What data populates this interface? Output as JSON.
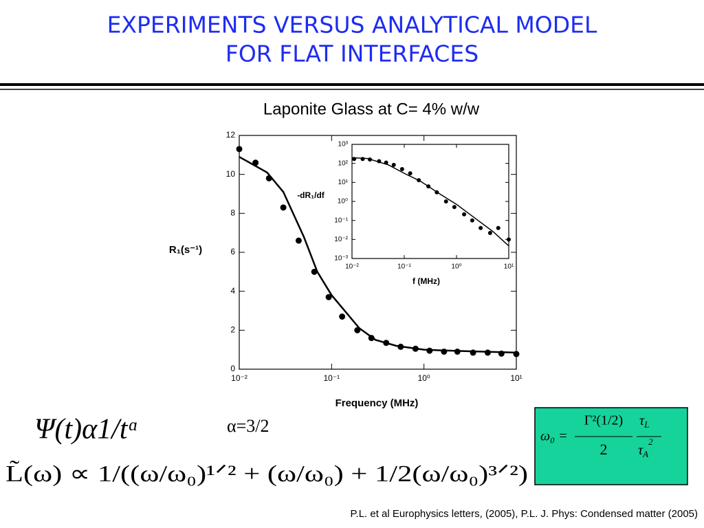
{
  "slide": {
    "title": [
      "EXPERIMENTS VERSUS ANALYTICAL MODEL",
      "FOR FLAT INTERFACES"
    ],
    "equation_1": "Ψ(t)α1/tᵅ",
    "alpha": "α=3/2",
    "equation_2": "L̃(ω) ∝ 1/((ω/ω₀)¹ᐟ² + (ω/ω₀) + 1/2(ω/ω₀)³ᐟ²)",
    "omega_box": {
      "lhs": "ω₀ =",
      "frac1": {
        "num": "Γ²(1/2)",
        "den": "2"
      },
      "frac2": {
        "num": {
          "symbol": "τ",
          "sub": "L"
        },
        "den": {
          "symbol": "τ",
          "sub": "A",
          "sup": "2"
        }
      }
    },
    "footer": "P.L. et al Europhysics letters, (2005), P.L. J. Phys: Condensed matter (2005)"
  },
  "chart_data": [
    {
      "type": "scatter",
      "title": "Laponite Glass at C= 4% w/w",
      "x_label": "Frequency (MHz)",
      "y_label": "R₁(s⁻¹)",
      "xlog": true,
      "xlim": [
        0.01,
        10
      ],
      "xticks": [
        {
          "value": 0.01,
          "label": "10⁻²"
        },
        {
          "value": 0.1,
          "label": "10⁻¹"
        },
        {
          "value": 1,
          "label": "10⁰"
        },
        {
          "value": 10,
          "label": "10¹"
        }
      ],
      "ylim": [
        0,
        12
      ],
      "yticks": [
        0,
        2,
        4,
        6,
        8,
        10,
        12
      ],
      "series": [
        {
          "mode": "markers",
          "color": "#000000",
          "x": [
            0.01,
            0.015,
            0.021,
            0.03,
            0.044,
            0.065,
            0.093,
            0.13,
            0.19,
            0.27,
            0.39,
            0.56,
            0.81,
            1.15,
            1.65,
            2.3,
            3.4,
            4.9,
            6.9,
            10
          ],
          "values": [
            11.3,
            10.6,
            9.8,
            8.3,
            6.6,
            5.0,
            3.7,
            2.7,
            2.0,
            1.6,
            1.35,
            1.15,
            1.05,
            0.95,
            0.9,
            0.9,
            0.85,
            0.85,
            0.8,
            0.78
          ]
        },
        {
          "mode": "line",
          "color": "#000000",
          "x": [
            0.01,
            0.02,
            0.03,
            0.05,
            0.07,
            0.1,
            0.2,
            0.3,
            0.5,
            1,
            3,
            10
          ],
          "values": [
            10.9,
            10.1,
            9.1,
            6.8,
            5.0,
            3.8,
            2.1,
            1.5,
            1.2,
            1.0,
            0.92,
            0.85
          ]
        }
      ]
    },
    {
      "type": "scatter",
      "x_label": "f (MHz)",
      "y_label": "-dR₁/df",
      "xlog": true,
      "ylog": true,
      "xlim": [
        0.01,
        10
      ],
      "ylim": [
        0.001,
        1000
      ],
      "xticks": [
        {
          "value": 0.01,
          "label": "10⁻²"
        },
        {
          "value": 0.1,
          "label": "10⁻¹"
        },
        {
          "value": 1,
          "label": "10⁰"
        },
        {
          "value": 10,
          "label": "10¹"
        }
      ],
      "yticks": [
        {
          "value": 0.001,
          "label": "10⁻³"
        },
        {
          "value": 0.01,
          "label": "10⁻²"
        },
        {
          "value": 0.1,
          "label": "10⁻¹"
        },
        {
          "value": 1,
          "label": "10⁰"
        },
        {
          "value": 10,
          "label": "10¹"
        },
        {
          "value": 100,
          "label": "10²"
        },
        {
          "value": 1000,
          "label": "10³"
        }
      ],
      "series": [
        {
          "mode": "markers",
          "color": "#000000",
          "x": [
            0.011,
            0.016,
            0.022,
            0.033,
            0.045,
            0.063,
            0.091,
            0.13,
            0.19,
            0.29,
            0.42,
            0.63,
            0.91,
            1.4,
            2.0,
            2.9,
            4.4,
            6.3,
            10
          ],
          "values": [
            170,
            170,
            160,
            130,
            110,
            83,
            50,
            30,
            13,
            6.2,
            3.0,
            1.0,
            0.51,
            0.21,
            0.1,
            0.04,
            0.022,
            0.04,
            0.01
          ]
        },
        {
          "mode": "line",
          "color": "#000000",
          "x": [
            0.01,
            0.02,
            0.05,
            0.1,
            0.2,
            0.5,
            1,
            2,
            5,
            10
          ],
          "values": [
            200,
            180,
            83,
            30,
            12,
            2.3,
            0.7,
            0.17,
            0.026,
            0.0046
          ]
        }
      ]
    }
  ]
}
